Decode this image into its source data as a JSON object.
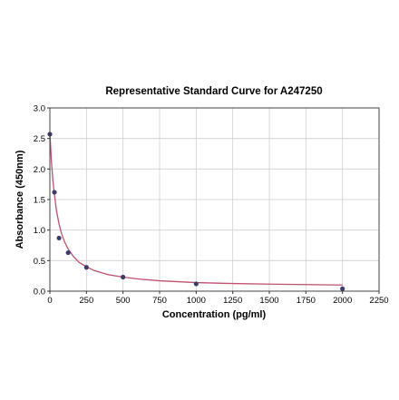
{
  "chart_data": {
    "type": "scatter",
    "title": "Representative Standard Curve for A247250",
    "xlabel": "Concentration (pg/ml)",
    "ylabel": "Absorbance (450nm)",
    "xlim": [
      0,
      2250
    ],
    "ylim": [
      0,
      3.0
    ],
    "xticks": [
      "0",
      "250",
      "500",
      "750",
      "1000",
      "1250",
      "1500",
      "1750",
      "2000",
      "2250"
    ],
    "yticks": [
      "0.0",
      "0.5",
      "1.0",
      "1.5",
      "2.0",
      "2.5",
      "3.0"
    ],
    "grid": true,
    "series": [
      {
        "points": [
          {
            "x": 0,
            "y": 2.57
          },
          {
            "x": 31.25,
            "y": 1.62
          },
          {
            "x": 62.5,
            "y": 0.87
          },
          {
            "x": 125,
            "y": 0.63
          },
          {
            "x": 250,
            "y": 0.39
          },
          {
            "x": 500,
            "y": 0.23
          },
          {
            "x": 1000,
            "y": 0.12
          },
          {
            "x": 2000,
            "y": 0.04
          }
        ],
        "curve": [
          {
            "x": 0,
            "y": 2.6
          },
          {
            "x": 10,
            "y": 2.15
          },
          {
            "x": 20,
            "y": 1.82
          },
          {
            "x": 31.25,
            "y": 1.58
          },
          {
            "x": 45,
            "y": 1.32
          },
          {
            "x": 62.5,
            "y": 1.1
          },
          {
            "x": 80,
            "y": 0.94
          },
          {
            "x": 100,
            "y": 0.81
          },
          {
            "x": 125,
            "y": 0.69
          },
          {
            "x": 160,
            "y": 0.57
          },
          {
            "x": 200,
            "y": 0.47
          },
          {
            "x": 250,
            "y": 0.4
          },
          {
            "x": 300,
            "y": 0.34
          },
          {
            "x": 400,
            "y": 0.27
          },
          {
            "x": 500,
            "y": 0.23
          },
          {
            "x": 600,
            "y": 0.2
          },
          {
            "x": 750,
            "y": 0.17
          },
          {
            "x": 1000,
            "y": 0.14
          },
          {
            "x": 1250,
            "y": 0.125
          },
          {
            "x": 1500,
            "y": 0.115
          },
          {
            "x": 1750,
            "y": 0.108
          },
          {
            "x": 2000,
            "y": 0.1
          }
        ],
        "marker_color": "#3b3b6e",
        "line_color": "#c0506e"
      }
    ]
  }
}
